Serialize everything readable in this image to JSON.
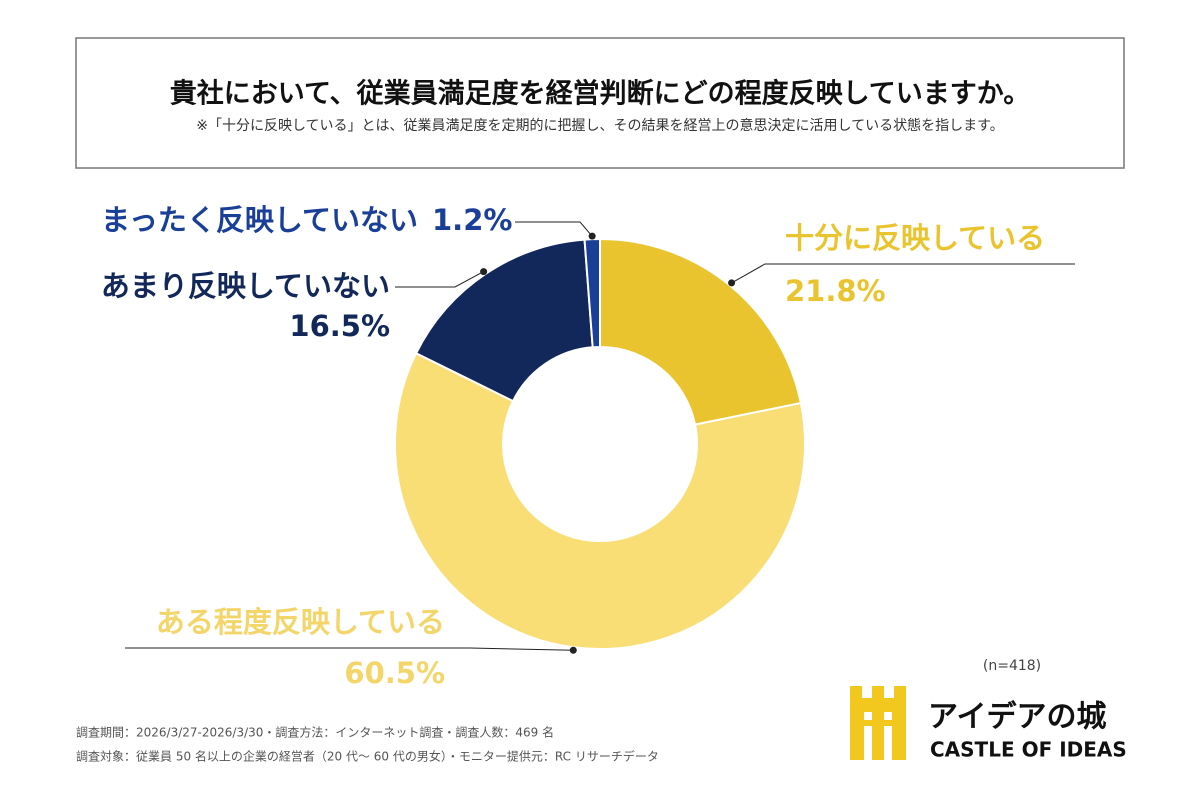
{
  "chart_data": {
    "type": "pie",
    "title": "貴社において、従業員満足度を経営判断にどの程度反映していますか。",
    "subtitle": "※「十分に反映している」とは、従業員満足度を定期的に把握し、その結果を経営上の意思決定に活用している状態を指します。",
    "categories": [
      "十分に反映している",
      "ある程度反映している",
      "あまり反映していない",
      "まったく反映していない"
    ],
    "values": [
      21.8,
      60.5,
      16.5,
      1.2
    ],
    "value_labels": [
      "21.8%",
      "60.5%",
      "16.5%",
      "1.2%"
    ],
    "colors": [
      "#e9c42e",
      "#f9dd75",
      "#13285a",
      "#1a3f99"
    ],
    "label_colors": [
      "#e9c42e",
      "#f3d56a",
      "#13285a",
      "#1a3f99"
    ],
    "donut": true,
    "sample_size": "(n=418)"
  },
  "notes": [
    "調査期間：2026/3/27-2026/3/30・調査方法：インターネット調査・調査人数：469 名",
    "調査対象：従業員 50 名以上の企業の経営者（20 代〜 60 代の男女）・モニター提供元：RC リサーチデータ"
  ],
  "logo": {
    "name": "アイデアの城",
    "subtitle": "CASTLE OF IDEAS"
  }
}
